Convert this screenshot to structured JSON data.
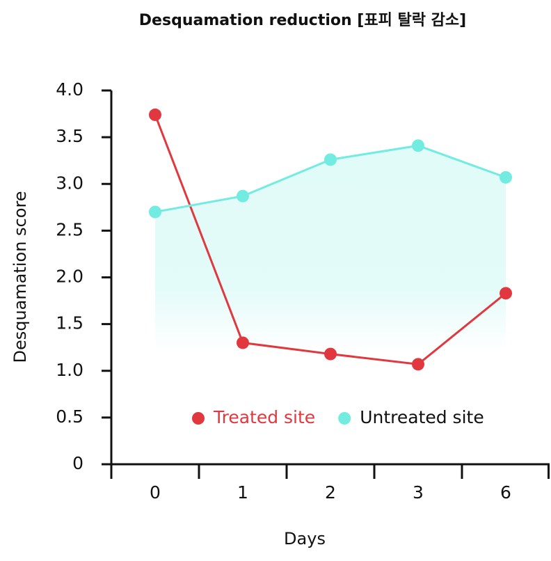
{
  "chart_data": {
    "type": "line",
    "title": "Desquamation reduction [표피 탈락 감소]",
    "x_label": "Days",
    "y_label": "Desquamation score",
    "categories": [
      "0",
      "1",
      "2",
      "3",
      "6"
    ],
    "series": [
      {
        "name": "Treated site",
        "color": "#e0383e",
        "values": [
          3.74,
          1.3,
          1.18,
          1.07,
          1.83
        ]
      },
      {
        "name": "Untreated site",
        "color": "#72ece0",
        "values": [
          2.7,
          2.87,
          3.26,
          3.41,
          3.07
        ]
      }
    ],
    "ylim": [
      0,
      4
    ],
    "yticks": [
      0,
      0.5,
      {
        "value": 1,
        "label": "1.0"
      },
      1.5,
      {
        "value": 2,
        "label": "2.0"
      },
      2.5,
      {
        "value": 3,
        "label": "3.0"
      },
      3.5,
      {
        "value": 4,
        "label": "4.0"
      }
    ],
    "legend": "center",
    "area_fill": true
  }
}
